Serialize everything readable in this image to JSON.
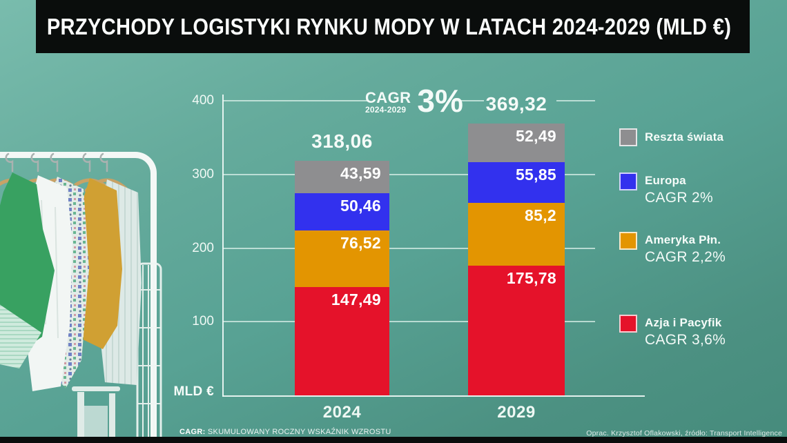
{
  "title": "PRZYCHODY LOGISTYKI RYNKU MODY W LATACH 2024-2029 (MLD €)",
  "chart_data": {
    "type": "bar",
    "stacked": true,
    "title": "PRZYCHODY LOGISTYKI RYNKU MODY W LATACH 2024-2029 (MLD €)",
    "ylabel": "MLD €",
    "ylim": [
      0,
      400
    ],
    "yticks": [
      100,
      200,
      300,
      400
    ],
    "grid": true,
    "legend_position": "right",
    "categories": [
      "2024",
      "2029"
    ],
    "totals": [
      318.06,
      369.32
    ],
    "total_labels": [
      "318,06",
      "369,32"
    ],
    "series": [
      {
        "name": "Azja i Pacyfik",
        "color": "#e5122a",
        "cagr_label": "CAGR 3,6%",
        "values": [
          147.49,
          175.78
        ],
        "value_labels": [
          "147,49",
          "175,78"
        ]
      },
      {
        "name": "Ameryka Płn.",
        "color": "#e39501",
        "cagr_label": "CAGR 2,2%",
        "values": [
          76.52,
          85.2
        ],
        "value_labels": [
          "76,52",
          "85,2"
        ]
      },
      {
        "name": "Europa",
        "color": "#3231ee",
        "cagr_label": "CAGR 2%",
        "values": [
          50.46,
          55.85
        ],
        "value_labels": [
          "50,46",
          "55,85"
        ]
      },
      {
        "name": "Reszta świata",
        "color": "#8e8e90",
        "cagr_label": "",
        "values": [
          43.59,
          52.49
        ],
        "value_labels": [
          "43,59",
          "52,49"
        ]
      }
    ],
    "annotation": {
      "label": "CAGR",
      "sublabel": "2024-2029",
      "value": "3%"
    }
  },
  "footer": {
    "note_prefix": "CAGR:",
    "note_text": " SKUMULOWANY ROCZNY WSKAŹNIK WZROSTU",
    "credit": "Oprac. Krzysztof Oflakowski, źródło: Transport Intelligence"
  },
  "colors": {
    "background": "#5aa294",
    "banner": "#0a0d0c",
    "gridline": "#dbf0e9",
    "asia_pacific": "#e5122a",
    "north_america": "#e39501",
    "europe": "#3231ee",
    "rest_of_world": "#8e8e90"
  }
}
